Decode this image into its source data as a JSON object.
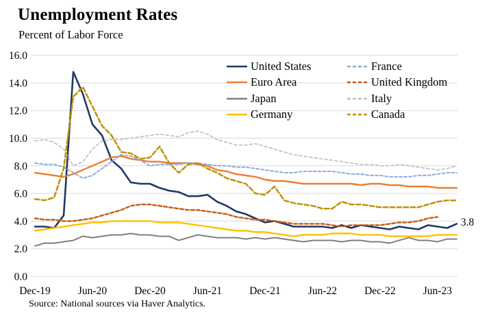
{
  "footer": {
    "source": "Source: National sources via Haver Analytics."
  },
  "chart_data": {
    "type": "line",
    "title": "Unemployment Rates",
    "subtitle": "Percent of Labor Force",
    "xlabel": "",
    "ylabel": "",
    "ylim": [
      0,
      16
    ],
    "ytick_step": 2,
    "grid": "horizontal",
    "grid_color": "#d9d9d9",
    "legend_position": "top-right-inside",
    "y_tick_labels": [
      "0.0",
      "2.0",
      "4.0",
      "6.0",
      "8.0",
      "10.0",
      "12.0",
      "14.0",
      "16.0"
    ],
    "x_tick_labels": [
      "Dec-19",
      "Jun-20",
      "Dec-20",
      "Jun-21",
      "Dec-21",
      "Jun-22",
      "Dec-22",
      "Jun-23"
    ],
    "x_tick_indices": [
      0,
      6,
      12,
      18,
      24,
      30,
      36,
      42
    ],
    "months": [
      "Dec-19",
      "Jan-20",
      "Feb-20",
      "Mar-20",
      "Apr-20",
      "May-20",
      "Jun-20",
      "Jul-20",
      "Aug-20",
      "Sep-20",
      "Oct-20",
      "Nov-20",
      "Dec-20",
      "Jan-21",
      "Feb-21",
      "Mar-21",
      "Apr-21",
      "May-21",
      "Jun-21",
      "Jul-21",
      "Aug-21",
      "Sep-21",
      "Oct-21",
      "Nov-21",
      "Dec-21",
      "Jan-22",
      "Feb-22",
      "Mar-22",
      "Apr-22",
      "May-22",
      "Jun-22",
      "Jul-22",
      "Aug-22",
      "Sep-22",
      "Oct-22",
      "Nov-22",
      "Dec-22",
      "Jan-23",
      "Feb-23",
      "Mar-23",
      "Apr-23",
      "May-23",
      "Jun-23",
      "Jul-23",
      "Aug-23"
    ],
    "annotations": [
      {
        "text": "3.8",
        "value": 3.8,
        "series": "United States",
        "position": "end-of-series"
      }
    ],
    "series": [
      {
        "id": "united-states",
        "name": "United States",
        "color": "#1F3864",
        "style": "solid",
        "dash": null,
        "width": 2.6,
        "values": [
          3.6,
          3.6,
          3.5,
          4.4,
          14.8,
          13.2,
          11.0,
          10.2,
          8.4,
          7.8,
          6.8,
          6.7,
          6.7,
          6.4,
          6.2,
          6.1,
          5.8,
          5.8,
          5.9,
          5.4,
          5.1,
          4.7,
          4.5,
          4.2,
          3.9,
          4.0,
          3.8,
          3.6,
          3.6,
          3.6,
          3.6,
          3.5,
          3.7,
          3.5,
          3.7,
          3.6,
          3.5,
          3.4,
          3.6,
          3.5,
          3.4,
          3.7,
          3.6,
          3.5,
          3.8
        ]
      },
      {
        "id": "euro-area",
        "name": "Euro Area",
        "color": "#ED7D31",
        "style": "solid",
        "dash": null,
        "width": 2.4,
        "values": [
          7.5,
          7.4,
          7.3,
          7.2,
          7.4,
          7.7,
          8.0,
          8.3,
          8.6,
          8.7,
          8.5,
          8.4,
          8.3,
          8.3,
          8.2,
          8.2,
          8.2,
          8.1,
          8.0,
          7.7,
          7.6,
          7.4,
          7.3,
          7.2,
          7.0,
          6.9,
          6.9,
          6.8,
          6.7,
          6.7,
          6.7,
          6.7,
          6.7,
          6.7,
          6.6,
          6.7,
          6.7,
          6.6,
          6.6,
          6.5,
          6.5,
          6.5,
          6.4,
          6.4,
          6.4
        ]
      },
      {
        "id": "japan",
        "name": "Japan",
        "color": "#7F7F7F",
        "style": "solid",
        "dash": null,
        "width": 2.0,
        "values": [
          2.2,
          2.4,
          2.4,
          2.5,
          2.6,
          2.9,
          2.8,
          2.9,
          3.0,
          3.0,
          3.1,
          3.0,
          3.0,
          2.9,
          2.9,
          2.6,
          2.8,
          3.0,
          2.9,
          2.8,
          2.8,
          2.8,
          2.7,
          2.8,
          2.7,
          2.8,
          2.7,
          2.6,
          2.5,
          2.6,
          2.6,
          2.6,
          2.5,
          2.6,
          2.6,
          2.5,
          2.5,
          2.4,
          2.6,
          2.8,
          2.6,
          2.6,
          2.5,
          2.7,
          2.7
        ]
      },
      {
        "id": "germany",
        "name": "Germany",
        "color": "#FFC000",
        "style": "solid",
        "dash": null,
        "width": 2.4,
        "values": [
          3.3,
          3.4,
          3.5,
          3.6,
          3.7,
          3.8,
          3.9,
          3.9,
          4.0,
          4.0,
          4.0,
          4.0,
          4.0,
          3.9,
          3.9,
          3.9,
          3.8,
          3.7,
          3.6,
          3.5,
          3.4,
          3.3,
          3.3,
          3.2,
          3.2,
          3.1,
          3.0,
          2.9,
          3.0,
          3.0,
          3.0,
          3.1,
          3.1,
          3.1,
          3.0,
          3.0,
          3.0,
          2.9,
          2.9,
          2.9,
          2.9,
          2.9,
          3.0,
          3.0,
          3.0
        ]
      },
      {
        "id": "france",
        "name": "France",
        "color": "#8FAADC",
        "style": "dashed",
        "dash": "4 3",
        "width": 2.0,
        "values": [
          8.2,
          8.1,
          8.1,
          7.9,
          7.5,
          7.1,
          7.3,
          7.8,
          8.3,
          8.8,
          8.7,
          8.4,
          8.0,
          8.1,
          8.1,
          8.1,
          8.2,
          8.2,
          8.1,
          8.0,
          8.0,
          7.9,
          7.9,
          7.8,
          7.7,
          7.6,
          7.5,
          7.5,
          7.6,
          7.6,
          7.6,
          7.6,
          7.5,
          7.4,
          7.4,
          7.3,
          7.3,
          7.2,
          7.2,
          7.2,
          7.3,
          7.3,
          7.4,
          7.5,
          7.5
        ]
      },
      {
        "id": "united-kingdom",
        "name": "United Kingdom",
        "color": "#C55A11",
        "style": "dashed",
        "dash": "5 3",
        "width": 2.4,
        "values": [
          4.2,
          4.1,
          4.1,
          4.0,
          4.0,
          4.1,
          4.2,
          4.4,
          4.6,
          4.8,
          5.1,
          5.2,
          5.2,
          5.1,
          5.0,
          4.9,
          4.8,
          4.8,
          4.7,
          4.6,
          4.5,
          4.3,
          4.2,
          4.1,
          4.1,
          4.0,
          3.9,
          3.8,
          3.8,
          3.8,
          3.8,
          3.7,
          3.6,
          3.7,
          3.7,
          3.7,
          3.7,
          3.8,
          3.9,
          3.9,
          4.0,
          4.2,
          4.3,
          null,
          null
        ]
      },
      {
        "id": "italy",
        "name": "Italy",
        "color": "#BFBFBF",
        "style": "dashed",
        "dash": "4 3.5",
        "width": 1.7,
        "values": [
          9.8,
          9.9,
          9.7,
          9.2,
          8.0,
          8.3,
          9.2,
          9.8,
          9.9,
          9.9,
          10.0,
          10.1,
          10.2,
          10.3,
          10.2,
          10.1,
          10.4,
          10.5,
          10.3,
          9.9,
          9.7,
          9.5,
          9.5,
          9.6,
          9.4,
          9.2,
          9.0,
          8.8,
          8.7,
          8.6,
          8.5,
          8.4,
          8.3,
          8.2,
          8.1,
          8.1,
          8.0,
          8.0,
          8.1,
          8.0,
          7.9,
          7.8,
          7.7,
          7.8,
          8.0
        ]
      },
      {
        "id": "canada",
        "name": "Canada",
        "color": "#BF9000",
        "style": "dashed",
        "dash": "6.5 3.5",
        "width": 2.5,
        "values": [
          5.6,
          5.5,
          5.7,
          7.8,
          13.0,
          13.7,
          12.3,
          10.9,
          10.2,
          9.0,
          8.9,
          8.5,
          8.6,
          9.4,
          8.2,
          7.5,
          8.1,
          8.2,
          7.8,
          7.5,
          7.1,
          6.9,
          6.7,
          6.0,
          5.9,
          6.5,
          5.5,
          5.3,
          5.2,
          5.1,
          4.9,
          4.9,
          5.4,
          5.2,
          5.2,
          5.1,
          5.0,
          5.0,
          5.0,
          5.0,
          5.0,
          5.2,
          5.4,
          5.5,
          5.5
        ]
      }
    ]
  }
}
